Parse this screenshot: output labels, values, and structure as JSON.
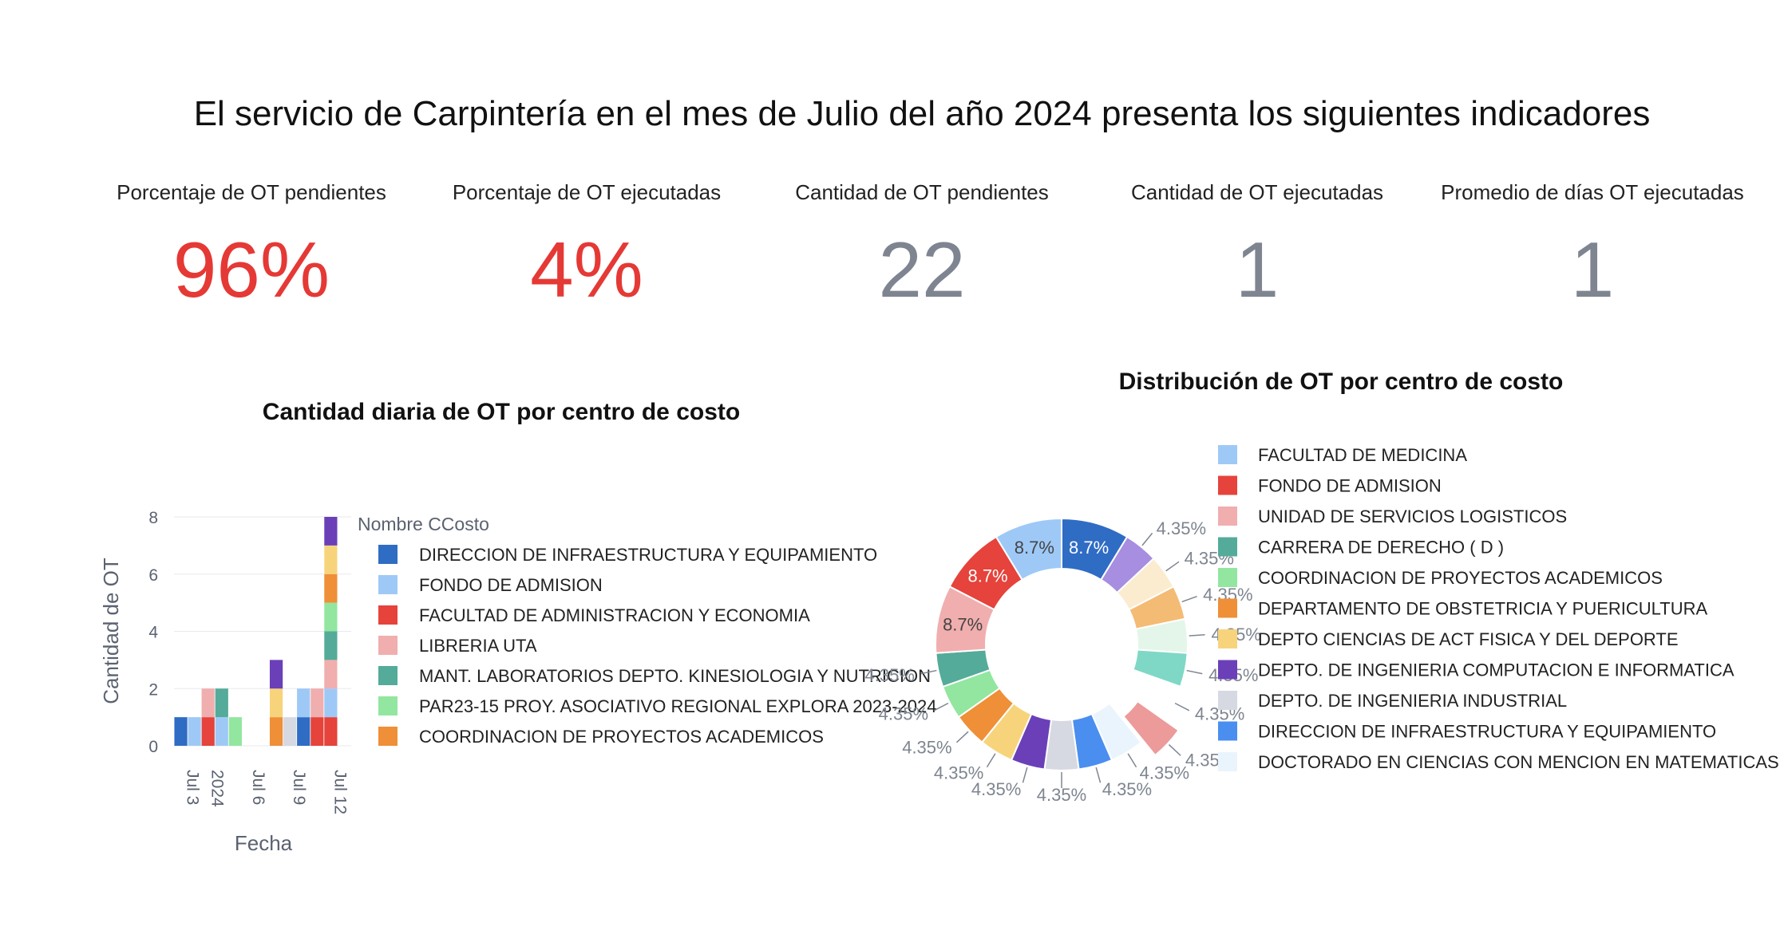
{
  "header": {
    "title": "El servicio de Carpintería en el mes de Julio del año 2024 presenta los siguientes indicadores"
  },
  "kpis": [
    {
      "label": "Porcentaje de OT pendientes",
      "value": "96%",
      "color": "#e53935"
    },
    {
      "label": "Porcentaje de OT ejecutadas",
      "value": "4%",
      "color": "#e53935"
    },
    {
      "label": "Cantidad de OT pendientes",
      "value": "22",
      "color": "#7e8590"
    },
    {
      "label": "Cantidad de OT ejecutadas",
      "value": "1",
      "color": "#7e8590"
    },
    {
      "label": "Promedio de días OT ejecutadas",
      "value": "1",
      "color": "#7e8590"
    }
  ],
  "chart_data": [
    {
      "type": "bar",
      "stacked": true,
      "title": "Cantidad diaria de OT por centro de costo",
      "xlabel": "Fecha",
      "ylabel": "Cantidad de OT",
      "ylim": [
        0,
        8
      ],
      "yticks": [
        "0",
        "2",
        "4",
        "6",
        "8"
      ],
      "xticks": [
        {
          "label": "Jul 3\n2024",
          "x": "2024-07-03"
        },
        {
          "label": "Jul 6",
          "x": "2024-07-06"
        },
        {
          "label": "Jul 9",
          "x": "2024-07-09"
        },
        {
          "label": "Jul 12",
          "x": "2024-07-12"
        }
      ],
      "xlim": [
        "2024-07-01",
        "2024-07-13"
      ],
      "legend": {
        "title": "Nombre CCosto",
        "position": "right",
        "entries": [
          {
            "name": "DIRECCION DE INFRAESTRUCTURA Y EQUIPAMIENTO",
            "color": "#2f6cc4"
          },
          {
            "name": "FONDO DE ADMISION",
            "color": "#9ec9f7"
          },
          {
            "name": "FACULTAD DE ADMINISTRACION Y ECONOMIA",
            "color": "#e5433b"
          },
          {
            "name": "LIBRERIA UTA",
            "color": "#f1aeae"
          },
          {
            "name": "MANT. LABORATORIOS DEPTO. KINESIOLOGIA Y NUTRICION",
            "color": "#54ab99"
          },
          {
            "name": "PAR23-15 PROY. ASOCIATIVO REGIONAL EXPLORA 2023-2024",
            "color": "#92e6a0"
          },
          {
            "name": "COORDINACION DE PROYECTOS ACADEMICOS",
            "color": "#ef8f37"
          }
        ]
      },
      "bars": [
        {
          "x": "2024-07-01",
          "segments": [
            {
              "value": 1,
              "color": "#2f6cc4"
            }
          ]
        },
        {
          "x": "2024-07-02",
          "segments": [
            {
              "value": 1,
              "color": "#9ec9f7"
            }
          ]
        },
        {
          "x": "2024-07-03",
          "segments": [
            {
              "value": 1,
              "color": "#e5433b"
            },
            {
              "value": 1,
              "color": "#f1aeae"
            }
          ]
        },
        {
          "x": "2024-07-04",
          "segments": [
            {
              "value": 1,
              "color": "#9ec9f7"
            },
            {
              "value": 1,
              "color": "#54ab99"
            }
          ]
        },
        {
          "x": "2024-07-05",
          "segments": [
            {
              "value": 1,
              "color": "#92e6a0"
            }
          ]
        },
        {
          "x": "2024-07-08",
          "segments": [
            {
              "value": 1,
              "color": "#ef8f37"
            },
            {
              "value": 1,
              "color": "#f7d47c"
            },
            {
              "value": 1,
              "color": "#6b3fb8"
            }
          ]
        },
        {
          "x": "2024-07-09",
          "segments": [
            {
              "value": 1,
              "color": "#d6d9e2"
            }
          ]
        },
        {
          "x": "2024-07-10",
          "segments": [
            {
              "value": 1,
              "color": "#2f6cc4"
            },
            {
              "value": 1,
              "color": "#9ec9f7"
            }
          ]
        },
        {
          "x": "2024-07-11",
          "segments": [
            {
              "value": 1,
              "color": "#e5433b"
            },
            {
              "value": 1,
              "color": "#f1aeae"
            }
          ]
        },
        {
          "x": "2024-07-12",
          "segments": [
            {
              "value": 1,
              "color": "#e5433b"
            },
            {
              "value": 1,
              "color": "#9ec9f7"
            },
            {
              "value": 1,
              "color": "#f1aeae"
            },
            {
              "value": 1,
              "color": "#54ab99"
            },
            {
              "value": 1,
              "color": "#92e6a0"
            },
            {
              "value": 1,
              "color": "#ef8f37"
            },
            {
              "value": 1,
              "color": "#f7d47c"
            },
            {
              "value": 1,
              "color": "#6b3fb8"
            }
          ]
        }
      ]
    },
    {
      "type": "pie",
      "hole": true,
      "title": "Distribución de OT por centro de costo",
      "legend_position": "right",
      "slices": [
        {
          "name": "DIRECCION DE INFRAESTRUCTURA Y EQUIPAMIENTO",
          "value": 8.7,
          "label": "8.7%",
          "color": "#2f6cc4",
          "label_inside": true
        },
        {
          "name": "",
          "value": 4.35,
          "label": "4.35%",
          "color": "#a78ee0",
          "label_inside": false
        },
        {
          "name": "",
          "value": 4.35,
          "label": "4.35%",
          "color": "#fbecd0",
          "label_inside": false
        },
        {
          "name": "",
          "value": 4.35,
          "label": "4.35%",
          "color": "#f4bb74",
          "label_inside": false
        },
        {
          "name": "",
          "value": 4.35,
          "label": "4.35%",
          "color": "#e4f6e9",
          "label_inside": false
        },
        {
          "name": "",
          "value": 4.35,
          "label": "4.35%",
          "color": "#7fd8c6",
          "label_inside": false
        },
        {
          "name": "",
          "value": 4.35,
          "label": "4.35%",
          "color": "#ffffff",
          "label_inside": false
        },
        {
          "name": "",
          "value": 4.35,
          "label": "4.35%",
          "color": "#ec9a9a",
          "label_inside": false,
          "pulled": true
        },
        {
          "name": "DOCTORADO EN CIENCIAS CON MENCION EN MATEMATICAS",
          "value": 4.35,
          "label": "4.35%",
          "color": "#eaf4fd",
          "label_inside": false
        },
        {
          "name": "DIRECCION DE INFRAESTRUCTURA Y EQUIPAMIENTO",
          "value": 4.35,
          "label": "4.35%",
          "color": "#4a8ef0",
          "label_inside": false
        },
        {
          "name": "DEPTO. DE INGENIERIA INDUSTRIAL",
          "value": 4.35,
          "label": "4.35%",
          "color": "#d6d9e2",
          "label_inside": false
        },
        {
          "name": "DEPTO. DE INGENIERIA COMPUTACION E INFORMATICA",
          "value": 4.35,
          "label": "4.35%",
          "color": "#6b3fb8",
          "label_inside": false
        },
        {
          "name": "DEPTO CIENCIAS DE ACT FISICA Y DEL DEPORTE",
          "value": 4.35,
          "label": "4.35%",
          "color": "#f7d47c",
          "label_inside": false
        },
        {
          "name": "DEPARTAMENTO DE OBSTETRICIA Y PUERICULTURA",
          "value": 4.35,
          "label": "4.35%",
          "color": "#ef8f37",
          "label_inside": false
        },
        {
          "name": "COORDINACION DE PROYECTOS ACADEMICOS",
          "value": 4.35,
          "label": "4.35%",
          "color": "#92e6a0",
          "label_inside": false
        },
        {
          "name": "CARRERA DE DERECHO ( D )",
          "value": 4.35,
          "label": "4.35%",
          "color": "#54ab99",
          "label_inside": false
        },
        {
          "name": "UNIDAD DE SERVICIOS LOGISTICOS",
          "value": 8.7,
          "label": "8.7%",
          "color": "#f1aeae",
          "label_inside": true
        },
        {
          "name": "FONDO DE ADMISION",
          "value": 8.7,
          "label": "8.7%",
          "color": "#e5433b",
          "label_inside": true
        },
        {
          "name": "FACULTAD DE MEDICINA",
          "value": 8.7,
          "label": "8.7%",
          "color": "#9ec9f7",
          "label_inside": true
        }
      ],
      "legend": [
        {
          "name": "FACULTAD DE MEDICINA",
          "color": "#9ec9f7"
        },
        {
          "name": "FONDO DE ADMISION",
          "color": "#e5433b"
        },
        {
          "name": "UNIDAD DE SERVICIOS LOGISTICOS",
          "color": "#f1aeae"
        },
        {
          "name": "CARRERA DE DERECHO ( D )",
          "color": "#54ab99"
        },
        {
          "name": "COORDINACION DE PROYECTOS ACADEMICOS",
          "color": "#92e6a0"
        },
        {
          "name": "DEPARTAMENTO DE OBSTETRICIA Y PUERICULTURA",
          "color": "#ef8f37"
        },
        {
          "name": "DEPTO CIENCIAS DE ACT FISICA Y DEL DEPORTE",
          "color": "#f7d47c"
        },
        {
          "name": "DEPTO. DE INGENIERIA COMPUTACION E INFORMATICA",
          "color": "#6b3fb8"
        },
        {
          "name": "DEPTO. DE INGENIERIA INDUSTRIAL",
          "color": "#d6d9e2"
        },
        {
          "name": "DIRECCION DE INFRAESTRUCTURA Y EQUIPAMIENTO",
          "color": "#4a8ef0"
        },
        {
          "name": "DOCTORADO EN CIENCIAS CON MENCION EN MATEMATICAS",
          "color": "#eaf4fd"
        }
      ]
    }
  ]
}
